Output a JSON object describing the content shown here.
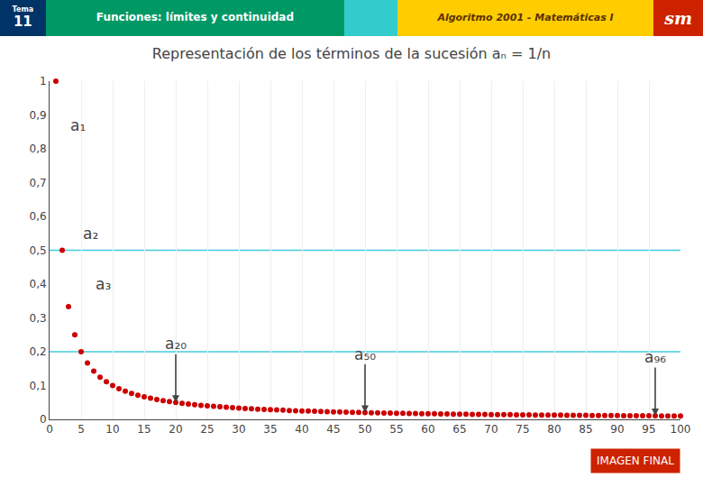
{
  "chart_data": {
    "type": "scatter",
    "title": "Representación de los términos de la sucesión aₙ = 1/n",
    "x": [
      1,
      2,
      3,
      4,
      5,
      6,
      7,
      8,
      9,
      10,
      11,
      12,
      13,
      14,
      15,
      16,
      17,
      18,
      19,
      20,
      21,
      22,
      23,
      24,
      25,
      26,
      27,
      28,
      29,
      30,
      31,
      32,
      33,
      34,
      35,
      36,
      37,
      38,
      39,
      40,
      41,
      42,
      43,
      44,
      45,
      46,
      47,
      48,
      49,
      50,
      51,
      52,
      53,
      54,
      55,
      56,
      57,
      58,
      59,
      60,
      61,
      62,
      63,
      64,
      65,
      66,
      67,
      68,
      69,
      70,
      71,
      72,
      73,
      74,
      75,
      76,
      77,
      78,
      79,
      80,
      81,
      82,
      83,
      84,
      85,
      86,
      87,
      88,
      89,
      90,
      91,
      92,
      93,
      94,
      95,
      96,
      97,
      98,
      99,
      100
    ],
    "values": [
      1,
      0.5,
      0.3333333333333333,
      0.25,
      0.2,
      0.16666666666666666,
      0.14285714285714285,
      0.125,
      0.1111111111111111,
      0.1,
      0.09090909090909091,
      0.08333333333333333,
      0.07692307692307693,
      0.07142857142857142,
      0.06666666666666667,
      0.0625,
      0.058823529411764705,
      0.05555555555555555,
      0.05263157894736842,
      0.05,
      0.047619047619047616,
      0.045454545454545456,
      0.043478260869565216,
      0.041666666666666664,
      0.04,
      0.038461538461538464,
      0.037037037037037035,
      0.03571428571428571,
      0.034482758620689655,
      0.03333333333333333,
      0.03225806451612903,
      0.03125,
      0.030303030303030304,
      0.029411764705882353,
      0.02857142857142857,
      0.027777777777777776,
      0.02702702702702703,
      0.02631578947368421,
      0.02564102564102564,
      0.025,
      0.024390243902439025,
      0.023809523809523808,
      0.023255813953488372,
      0.022727272727272728,
      0.022222222222222223,
      0.021739130434782608,
      0.02127659574468085,
      0.020833333333333332,
      0.02040816326530612,
      0.02,
      0.0196078431372549,
      0.019230769230769232,
      0.018867924528301886,
      0.018518518518518517,
      0.01818181818181818,
      0.017857142857142856,
      0.017543859649122806,
      0.017241379310344827,
      0.01694915254237288,
      0.016666666666666666,
      0.01639344262295082,
      0.016129032258064516,
      0.015873015873015872,
      0.015625,
      0.015384615384615385,
      0.015151515151515152,
      0.014925373134328358,
      0.014705882352941176,
      0.014492753623188406,
      0.014285714285714285,
      0.014084507042253521,
      0.013888888888888888,
      0.0136986301369863,
      0.013513513513513514,
      0.013333333333333334,
      0.013157894736842105,
      0.012987012987012988,
      0.01282051282051282,
      0.012658227848101266,
      0.0125,
      0.012345679012345678,
      0.012195121951219513,
      0.012048192771084338,
      0.011904761904761904,
      0.011764705882352941,
      0.011627906976744186,
      0.011494252873563218,
      0.011363636363636364,
      0.011235955056179775,
      0.011111111111111112,
      0.01098901098901099,
      0.010869565217391304,
      0.010752688172043012,
      0.010638297872340425,
      0.010526315789473684,
      0.010416666666666666,
      0.010309278350515464,
      0.01020408163265306,
      0.010101010101010102,
      0.01
    ],
    "color": "#cc0000",
    "xlim": [
      0,
      100
    ],
    "ylim": [
      0,
      1.0
    ],
    "xticks": [
      0,
      5,
      10,
      15,
      20,
      25,
      30,
      35,
      40,
      45,
      50,
      55,
      60,
      65,
      70,
      75,
      80,
      85,
      90,
      95,
      100
    ],
    "yticks": [
      0,
      {
        "value": 0.1,
        "label": "0,1"
      },
      {
        "value": 0.2,
        "label": "0,2"
      },
      {
        "value": 0.3,
        "label": "0,3"
      },
      {
        "value": 0.4,
        "label": "0,4"
      },
      {
        "value": 0.5,
        "label": "0,5"
      },
      {
        "value": 0.6,
        "label": "0,6"
      },
      {
        "value": 0.7,
        "label": "0,7"
      },
      {
        "value": 0.8,
        "label": "0,8"
      },
      {
        "value": 0.9,
        "label": "0,9"
      },
      1
    ],
    "grid": "x",
    "horizontal_lines": [
      0.5,
      0.2
    ],
    "annotations": [
      {
        "text": "a₁",
        "x": 3,
        "y": 0.87
      },
      {
        "text": "a₂",
        "x": 5,
        "y": 0.55
      },
      {
        "text": "a₃",
        "x": 7,
        "y": 0.4
      },
      {
        "text": "a₂₀",
        "x": 20,
        "y": 0.05,
        "arrow": true
      },
      {
        "text": "a₅₀",
        "x": 50,
        "y": 0.02,
        "arrow": true
      },
      {
        "text": "a₉₆",
        "x": 96,
        "y": 0.010416666666666666,
        "arrow": true
      }
    ],
    "header": [
      {
        "texts": [
          "Tema",
          "11"
        ],
        "color": "#003366"
      },
      {
        "texts": [
          "Funciones: límites y continuidad"
        ],
        "color": "#009966"
      },
      {
        "texts": [],
        "color": "#33cccc"
      },
      {
        "texts": [
          "Algoritmo 2001 - Matemáticas I"
        ],
        "color": "#ffcc00"
      },
      {
        "texts": [
          "sm"
        ],
        "color": "#cc2200"
      }
    ],
    "footer": {
      "text": "IMAGEN FINAL",
      "color": "#cc2200"
    }
  }
}
